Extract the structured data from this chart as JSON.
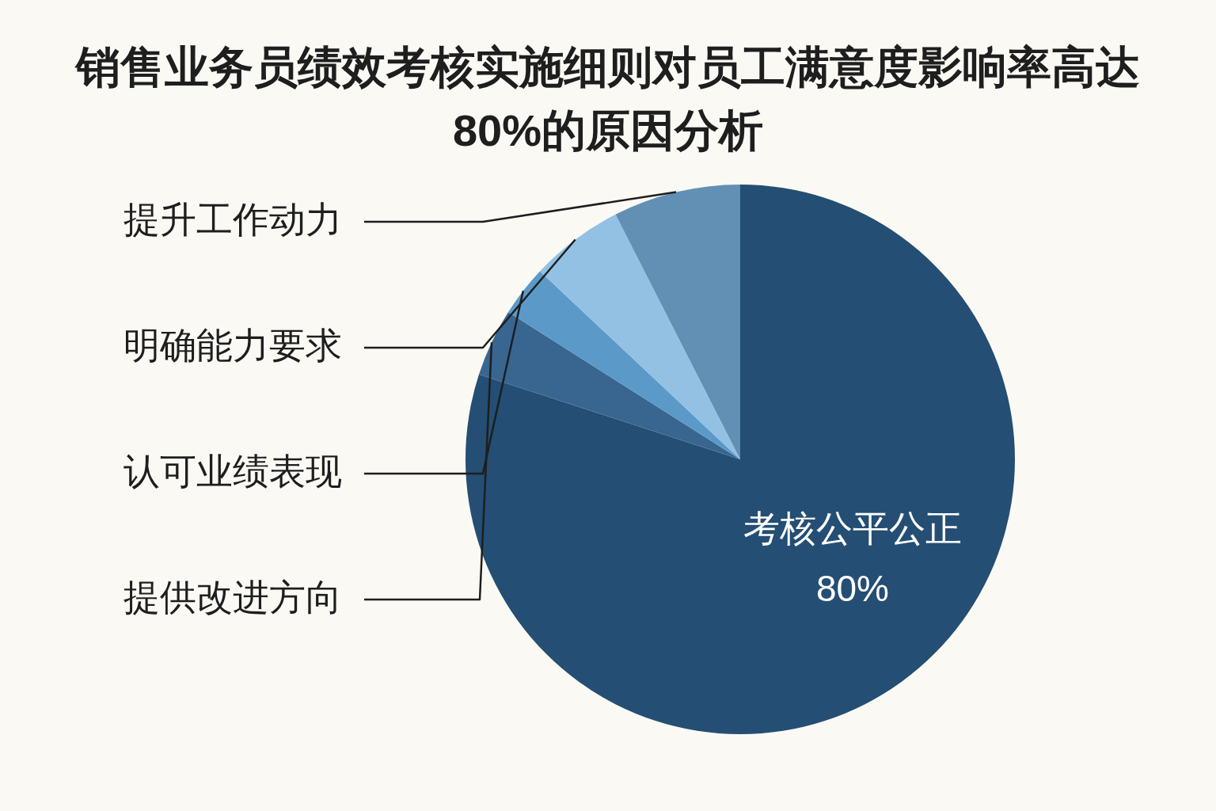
{
  "chart_data": {
    "type": "pie",
    "title": "销售业务员绩效考核实施细则对员工满意度影响率高达80%的原因分析",
    "categories": [
      "考核公平公正",
      "提供改进方向",
      "认可业绩表现",
      "明确能力要求",
      "提升工作动力"
    ],
    "values": [
      80,
      4,
      3,
      5.5,
      7.5
    ],
    "colors": [
      "#244e74",
      "#386690",
      "#5b9ac8",
      "#93c1e4",
      "#6190b4"
    ],
    "value_labels": [
      "80%",
      null,
      null,
      null,
      null
    ],
    "legend": false
  }
}
